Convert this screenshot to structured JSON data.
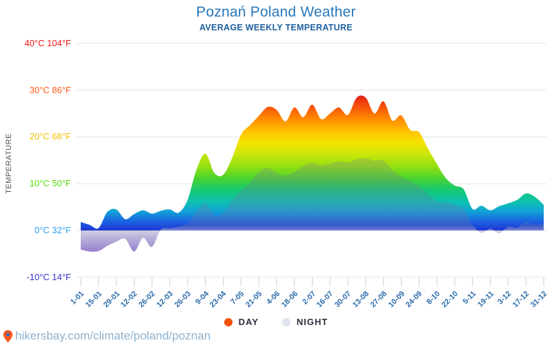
{
  "page": {
    "title": "Poznań Poland Weather",
    "subtitle": "AVERAGE WEEKLY TEMPERATURE"
  },
  "chart_data": {
    "type": "area",
    "title": "Poznań Poland Weather",
    "subtitle": "AVERAGE WEEKLY TEMPERATURE",
    "ylabel": "TEMPERATURE",
    "unit": "°C",
    "grid": true,
    "legend_position": "bottom",
    "ylim": [
      -10,
      40
    ],
    "points_per_series": 53,
    "points_interval": "weekly",
    "x_tick_labels": [
      "1-01",
      "15-01",
      "29-01",
      "12-02",
      "26-02",
      "12-03",
      "26-03",
      "9-04",
      "23-04",
      "7-05",
      "21-05",
      "4-06",
      "18-06",
      "2-07",
      "16-07",
      "30-07",
      "13-08",
      "27-08",
      "10-09",
      "24-09",
      "8-10",
      "22-10",
      "5-11",
      "19-11",
      "3-12",
      "17-12",
      "31-12"
    ],
    "y_ticks": [
      {
        "label": "40°C 104°F",
        "c": 40,
        "color": "#f31414"
      },
      {
        "label": "30°C 86°F",
        "c": 30,
        "color": "#ff5a14"
      },
      {
        "label": "20°C 68°F",
        "c": 20,
        "color": "#f0be00"
      },
      {
        "label": "10°C 50°F",
        "c": 10,
        "color": "#55dc0a"
      },
      {
        "label": "0°C 32°F",
        "c": 0,
        "color": "#28a0f0"
      },
      {
        "label": "-10°C 14°F",
        "c": -10,
        "color": "#3232d2"
      }
    ],
    "series": [
      {
        "name": "DAY",
        "legend_color": "#f4500a",
        "values": [
          1.8,
          1.2,
          0.5,
          4.0,
          4.5,
          2.4,
          3.5,
          4.3,
          3.6,
          4.2,
          4.5,
          3.8,
          6.5,
          13.0,
          16.4,
          12.3,
          11.9,
          15.5,
          20.5,
          22.5,
          24.5,
          26.4,
          25.8,
          23.3,
          26.3,
          24.2,
          26.9,
          23.8,
          25.0,
          26.3,
          24.7,
          28.4,
          28.4,
          25.0,
          27.6,
          23.5,
          24.6,
          21.5,
          21.0,
          17.5,
          14.2,
          11.2,
          9.6,
          8.8,
          4.6,
          5.3,
          4.3,
          5.2,
          5.8,
          6.5,
          7.9,
          7.2,
          5.5
        ]
      },
      {
        "name": "NIGHT",
        "legend_color": "#dfe4f0",
        "values": [
          -4.1,
          -4.5,
          -4.4,
          -3.3,
          -2.4,
          -1.8,
          -4.5,
          -1.6,
          -3.5,
          0.2,
          0.5,
          0.8,
          1.5,
          4.0,
          5.8,
          3.2,
          3.8,
          6.5,
          8.5,
          10.2,
          12.5,
          13.4,
          12.2,
          11.7,
          12.5,
          13.8,
          14.5,
          13.9,
          14.3,
          14.8,
          14.5,
          15.2,
          15.5,
          14.9,
          15.0,
          12.8,
          11.5,
          10.5,
          9.5,
          7.8,
          6.3,
          6.0,
          5.5,
          4.5,
          1.2,
          -0.5,
          0.4,
          -0.6,
          0.8,
          0.6,
          1.8,
          1.2,
          1.5
        ]
      }
    ],
    "day_gradient": [
      [
        30,
        "#d70a1e"
      ],
      [
        27,
        "#f4470c"
      ],
      [
        24,
        "#ff8800"
      ],
      [
        21,
        "#ffc400"
      ],
      [
        19,
        "#f7e100"
      ],
      [
        16.5,
        "#cfe70a"
      ],
      [
        13.5,
        "#8fdf12"
      ],
      [
        11,
        "#46d232"
      ],
      [
        8.5,
        "#14c878"
      ],
      [
        6,
        "#0ec0b4"
      ],
      [
        4,
        "#12a0d8"
      ],
      [
        2,
        "#1a64e0"
      ],
      [
        0,
        "#1f36d4"
      ]
    ],
    "night_gradient": [
      [
        16,
        "rgba(105,112,160,0.22)"
      ],
      [
        1.2,
        "rgba(110,115,168,0.30)"
      ],
      [
        0,
        "rgba(178,178,212,0.62)"
      ],
      [
        -1.5,
        "rgba(162,152,206,0.74)"
      ],
      [
        -5,
        "rgba(128,98,196,0.88)"
      ]
    ],
    "grid_color": "#e3e3e6",
    "tick_color": "#c2d2e4",
    "x_label_color": "#2b6cab"
  },
  "legend": {
    "items": [
      {
        "label": "DAY",
        "color": "#f4500a"
      },
      {
        "label": "NIGHT",
        "color": "#dfe4f0"
      }
    ]
  },
  "footer": {
    "url": "hikersbay.com/climate/poland/poznan",
    "pin_color": "#f4581e",
    "pin_dot_color": "#2e6bc0"
  }
}
